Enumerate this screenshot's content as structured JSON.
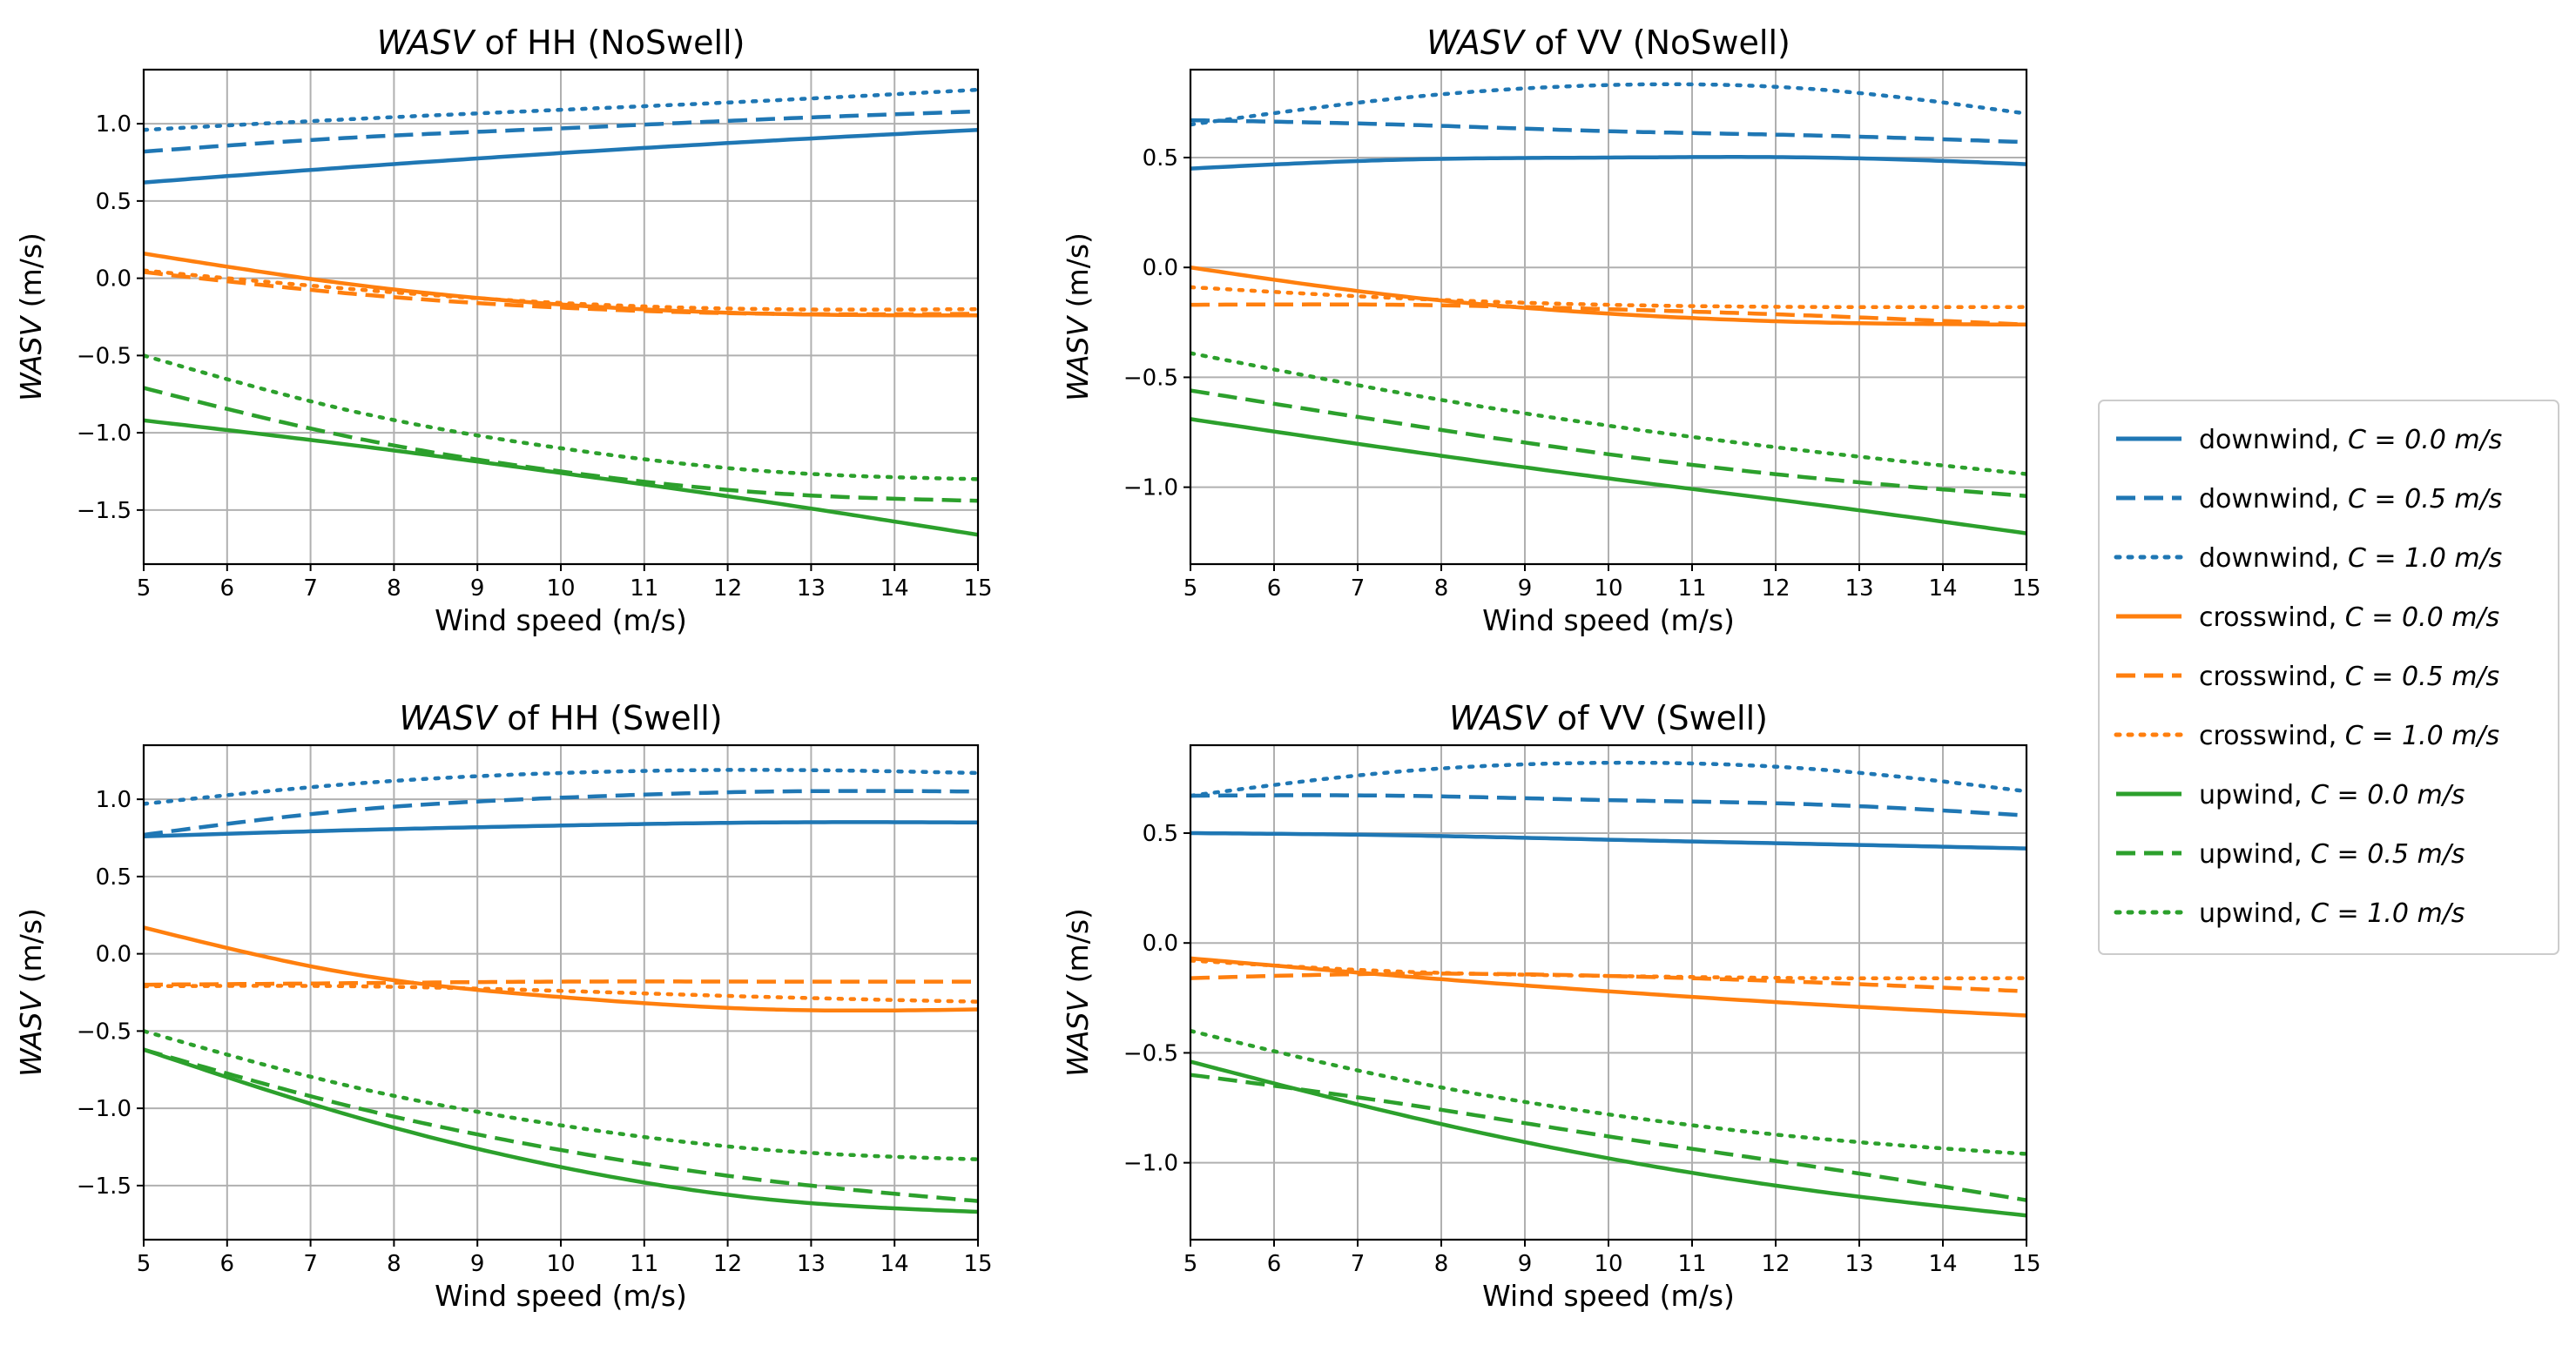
{
  "legend": {
    "entries": [
      {
        "label_main": "downwind, ",
        "label_math": "C = 0.0 m/s",
        "color": "#1f77b4",
        "style": "solid"
      },
      {
        "label_main": "downwind, ",
        "label_math": "C = 0.5 m/s",
        "color": "#1f77b4",
        "style": "dashed"
      },
      {
        "label_main": "downwind, ",
        "label_math": "C = 1.0 m/s",
        "color": "#1f77b4",
        "style": "dotted"
      },
      {
        "label_main": "crosswind, ",
        "label_math": "C = 0.0 m/s",
        "color": "#ff7f0e",
        "style": "solid"
      },
      {
        "label_main": "crosswind, ",
        "label_math": "C = 0.5 m/s",
        "color": "#ff7f0e",
        "style": "dashed"
      },
      {
        "label_main": "crosswind, ",
        "label_math": "C = 1.0 m/s",
        "color": "#ff7f0e",
        "style": "dotted"
      },
      {
        "label_main": "upwind, ",
        "label_math": "C = 0.0 m/s",
        "color": "#2ca02c",
        "style": "solid"
      },
      {
        "label_main": "upwind, ",
        "label_math": "C = 0.5 m/s",
        "color": "#2ca02c",
        "style": "dashed"
      },
      {
        "label_main": "upwind, ",
        "label_math": "C = 1.0 m/s",
        "color": "#2ca02c",
        "style": "dotted"
      }
    ]
  },
  "chart_data": [
    {
      "type": "line",
      "title_italic": "WASV",
      "title_rest": " of HH (NoSwell)",
      "xlabel": "Wind speed (m/s)",
      "ylabel_italic": "WASV",
      "ylabel_rest": " (m/s)",
      "xlim": [
        5,
        15
      ],
      "ylim": [
        -1.85,
        1.35
      ],
      "xticks": [
        5,
        6,
        7,
        8,
        9,
        10,
        11,
        12,
        13,
        14,
        15
      ],
      "yticks": [
        -1.5,
        -1.0,
        -0.5,
        0.0,
        0.5,
        1.0
      ],
      "ytick_labels": [
        "−1.5",
        "−1.0",
        "−0.5",
        "0.0",
        "0.5",
        "1.0"
      ],
      "x": [
        5,
        7.5,
        10,
        12.5,
        15
      ],
      "series": [
        {
          "name": "downwind, C = 0.0 m/s",
          "color": "#1f77b4",
          "style": "solid",
          "values": [
            0.62,
            0.72,
            0.81,
            0.89,
            0.96
          ]
        },
        {
          "name": "downwind, C = 0.5 m/s",
          "color": "#1f77b4",
          "style": "dashed",
          "values": [
            0.82,
            0.91,
            0.97,
            1.03,
            1.08
          ]
        },
        {
          "name": "downwind, C = 1.0 m/s",
          "color": "#1f77b4",
          "style": "dotted",
          "values": [
            0.96,
            1.03,
            1.09,
            1.15,
            1.22
          ]
        },
        {
          "name": "crosswind, C = 0.0 m/s",
          "color": "#ff7f0e",
          "style": "solid",
          "values": [
            0.16,
            -0.04,
            -0.17,
            -0.23,
            -0.24
          ]
        },
        {
          "name": "crosswind, C = 0.5 m/s",
          "color": "#ff7f0e",
          "style": "dashed",
          "values": [
            0.04,
            -0.1,
            -0.19,
            -0.23,
            -0.23
          ]
        },
        {
          "name": "crosswind, C = 1.0 m/s",
          "color": "#ff7f0e",
          "style": "dotted",
          "values": [
            0.05,
            -0.07,
            -0.16,
            -0.2,
            -0.2
          ]
        },
        {
          "name": "upwind, C = 0.0 m/s",
          "color": "#2ca02c",
          "style": "solid",
          "values": [
            -0.92,
            -1.08,
            -1.26,
            -1.45,
            -1.66
          ]
        },
        {
          "name": "upwind, C = 0.5 m/s",
          "color": "#2ca02c",
          "style": "dashed",
          "values": [
            -0.71,
            -1.03,
            -1.25,
            -1.39,
            -1.44
          ]
        },
        {
          "name": "upwind, C = 1.0 m/s",
          "color": "#2ca02c",
          "style": "dotted",
          "values": [
            -0.5,
            -0.86,
            -1.1,
            -1.25,
            -1.3
          ]
        }
      ]
    },
    {
      "type": "line",
      "title_italic": "WASV",
      "title_rest": " of VV (NoSwell)",
      "xlabel": "Wind speed (m/s)",
      "ylabel_italic": "WASV",
      "ylabel_rest": " (m/s)",
      "xlim": [
        5,
        15
      ],
      "ylim": [
        -1.35,
        0.9
      ],
      "xticks": [
        5,
        6,
        7,
        8,
        9,
        10,
        11,
        12,
        13,
        14,
        15
      ],
      "yticks": [
        -1.0,
        -0.5,
        0.0,
        0.5
      ],
      "ytick_labels": [
        "−1.0",
        "−0.5",
        "0.0",
        "0.5"
      ],
      "x": [
        5,
        7.5,
        10,
        12.5,
        15
      ],
      "series": [
        {
          "name": "downwind, C = 0.0 m/s",
          "color": "#1f77b4",
          "style": "solid",
          "values": [
            0.45,
            0.49,
            0.5,
            0.5,
            0.47
          ]
        },
        {
          "name": "downwind, C = 0.5 m/s",
          "color": "#1f77b4",
          "style": "dashed",
          "values": [
            0.67,
            0.65,
            0.62,
            0.6,
            0.57
          ]
        },
        {
          "name": "downwind, C = 1.0 m/s",
          "color": "#1f77b4",
          "style": "dotted",
          "values": [
            0.65,
            0.77,
            0.83,
            0.81,
            0.7
          ]
        },
        {
          "name": "crosswind, C = 0.0 m/s",
          "color": "#ff7f0e",
          "style": "solid",
          "values": [
            0.0,
            -0.13,
            -0.21,
            -0.25,
            -0.26
          ]
        },
        {
          "name": "crosswind, C = 0.5 m/s",
          "color": "#ff7f0e",
          "style": "dashed",
          "values": [
            -0.17,
            -0.17,
            -0.19,
            -0.22,
            -0.26
          ]
        },
        {
          "name": "crosswind, C = 1.0 m/s",
          "color": "#ff7f0e",
          "style": "dotted",
          "values": [
            -0.09,
            -0.14,
            -0.17,
            -0.18,
            -0.18
          ]
        },
        {
          "name": "upwind, C = 0.0 m/s",
          "color": "#2ca02c",
          "style": "solid",
          "values": [
            -0.69,
            -0.83,
            -0.96,
            -1.08,
            -1.21
          ]
        },
        {
          "name": "upwind, C = 0.5 m/s",
          "color": "#2ca02c",
          "style": "dashed",
          "values": [
            -0.56,
            -0.71,
            -0.85,
            -0.96,
            -1.04
          ]
        },
        {
          "name": "upwind, C = 1.0 m/s",
          "color": "#2ca02c",
          "style": "dotted",
          "values": [
            -0.39,
            -0.57,
            -0.72,
            -0.84,
            -0.94
          ]
        }
      ]
    },
    {
      "type": "line",
      "title_italic": "WASV",
      "title_rest": " of HH (Swell)",
      "xlabel": "Wind speed (m/s)",
      "ylabel_italic": "WASV",
      "ylabel_rest": " (m/s)",
      "xlim": [
        5,
        15
      ],
      "ylim": [
        -1.85,
        1.35
      ],
      "xticks": [
        5,
        6,
        7,
        8,
        9,
        10,
        11,
        12,
        13,
        14,
        15
      ],
      "yticks": [
        -1.5,
        -1.0,
        -0.5,
        0.0,
        0.5,
        1.0
      ],
      "ytick_labels": [
        "−1.5",
        "−1.0",
        "−0.5",
        "0.0",
        "0.5",
        "1.0"
      ],
      "x": [
        5,
        7.5,
        10,
        12.5,
        15
      ],
      "series": [
        {
          "name": "downwind, C = 0.0 m/s",
          "color": "#1f77b4",
          "style": "solid",
          "values": [
            0.76,
            0.8,
            0.83,
            0.85,
            0.85
          ]
        },
        {
          "name": "downwind, C = 0.5 m/s",
          "color": "#1f77b4",
          "style": "dashed",
          "values": [
            0.77,
            0.93,
            1.01,
            1.05,
            1.05
          ]
        },
        {
          "name": "downwind, C = 1.0 m/s",
          "color": "#1f77b4",
          "style": "dotted",
          "values": [
            0.97,
            1.1,
            1.17,
            1.19,
            1.17
          ]
        },
        {
          "name": "crosswind, C = 0.0 m/s",
          "color": "#ff7f0e",
          "style": "solid",
          "values": [
            0.17,
            -0.13,
            -0.28,
            -0.36,
            -0.36
          ]
        },
        {
          "name": "crosswind, C = 0.5 m/s",
          "color": "#ff7f0e",
          "style": "dashed",
          "values": [
            -0.2,
            -0.19,
            -0.18,
            -0.18,
            -0.18
          ]
        },
        {
          "name": "crosswind, C = 1.0 m/s",
          "color": "#ff7f0e",
          "style": "dotted",
          "values": [
            -0.21,
            -0.21,
            -0.24,
            -0.28,
            -0.31
          ]
        },
        {
          "name": "upwind, C = 0.0 m/s",
          "color": "#2ca02c",
          "style": "solid",
          "values": [
            -0.62,
            -1.05,
            -1.38,
            -1.59,
            -1.67
          ]
        },
        {
          "name": "upwind, C = 0.5 m/s",
          "color": "#2ca02c",
          "style": "dashed",
          "values": [
            -0.62,
            -0.99,
            -1.27,
            -1.47,
            -1.6
          ]
        },
        {
          "name": "upwind, C = 1.0 m/s",
          "color": "#2ca02c",
          "style": "dotted",
          "values": [
            -0.5,
            -0.86,
            -1.11,
            -1.27,
            -1.33
          ]
        }
      ]
    },
    {
      "type": "line",
      "title_italic": "WASV",
      "title_rest": " of VV (Swell)",
      "xlabel": "Wind speed (m/s)",
      "ylabel_italic": "WASV",
      "ylabel_rest": " (m/s)",
      "xlim": [
        5,
        15
      ],
      "ylim": [
        -1.35,
        0.9
      ],
      "xticks": [
        5,
        6,
        7,
        8,
        9,
        10,
        11,
        12,
        13,
        14,
        15
      ],
      "yticks": [
        -1.0,
        -0.5,
        0.0,
        0.5
      ],
      "ytick_labels": [
        "−1.0",
        "−0.5",
        "0.0",
        "0.5"
      ],
      "x": [
        5,
        7.5,
        10,
        12.5,
        15
      ],
      "series": [
        {
          "name": "downwind, C = 0.0 m/s",
          "color": "#1f77b4",
          "style": "solid",
          "values": [
            0.5,
            0.49,
            0.47,
            0.45,
            0.43
          ]
        },
        {
          "name": "downwind, C = 0.5 m/s",
          "color": "#1f77b4",
          "style": "dashed",
          "values": [
            0.67,
            0.67,
            0.65,
            0.63,
            0.58
          ]
        },
        {
          "name": "downwind, C = 1.0 m/s",
          "color": "#1f77b4",
          "style": "dotted",
          "values": [
            0.67,
            0.78,
            0.82,
            0.79,
            0.69
          ]
        },
        {
          "name": "crosswind, C = 0.0 m/s",
          "color": "#ff7f0e",
          "style": "solid",
          "values": [
            -0.07,
            -0.15,
            -0.22,
            -0.28,
            -0.33
          ]
        },
        {
          "name": "crosswind, C = 0.5 m/s",
          "color": "#ff7f0e",
          "style": "dashed",
          "values": [
            -0.16,
            -0.14,
            -0.15,
            -0.18,
            -0.22
          ]
        },
        {
          "name": "crosswind, C = 1.0 m/s",
          "color": "#ff7f0e",
          "style": "dotted",
          "values": [
            -0.08,
            -0.13,
            -0.15,
            -0.16,
            -0.16
          ]
        },
        {
          "name": "upwind, C = 0.0 m/s",
          "color": "#2ca02c",
          "style": "solid",
          "values": [
            -0.54,
            -0.78,
            -0.98,
            -1.13,
            -1.24
          ]
        },
        {
          "name": "upwind, C = 0.5 m/s",
          "color": "#2ca02c",
          "style": "dashed",
          "values": [
            -0.6,
            -0.73,
            -0.88,
            -1.02,
            -1.17
          ]
        },
        {
          "name": "upwind, C = 1.0 m/s",
          "color": "#2ca02c",
          "style": "dotted",
          "values": [
            -0.4,
            -0.62,
            -0.78,
            -0.89,
            -0.96
          ]
        }
      ]
    }
  ]
}
